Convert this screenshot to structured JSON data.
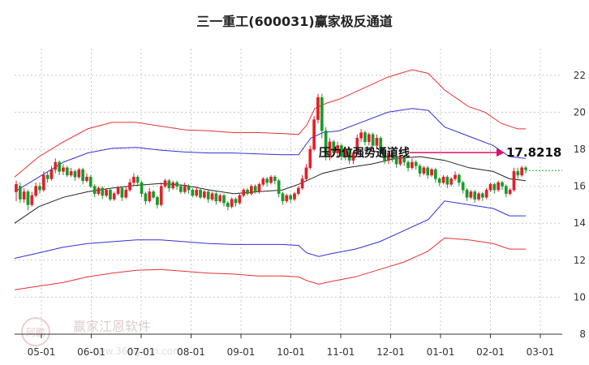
{
  "chart_data": {
    "type": "candlestick",
    "title": "三一重工(600031)赢家极反通道",
    "y_axis": {
      "ylim": [
        8,
        23
      ],
      "ticks": [
        8,
        10,
        12,
        14,
        16,
        18,
        20,
        22
      ],
      "position": "right",
      "grid": "horizontal-dashed"
    },
    "x_axis": {
      "labels": [
        "05-01",
        "06-01",
        "07-01",
        "08-01",
        "09-01",
        "10-01",
        "11-01",
        "12-01",
        "01-01",
        "02-01",
        "03-01"
      ],
      "grid": "vertical-dashed"
    },
    "annotation": {
      "text": "压力位强势通道线",
      "value": "17.8218",
      "y": 17.82
    },
    "current_price_line": 16.85,
    "colors": {
      "up": "#e0202a",
      "down": "#1a9a2a",
      "upper_band": "#e83030",
      "mid_band": "#3030d8",
      "center_line": "#222222",
      "arrow": "#e0106a",
      "price_line": "#2aa02a"
    },
    "series": [
      {
        "name": "",
        "key": "outer_upper",
        "points": [
          [
            0,
            16.5
          ],
          [
            30,
            17.6
          ],
          [
            60,
            18.4
          ],
          [
            90,
            19.1
          ],
          [
            120,
            19.45
          ],
          [
            150,
            19.45
          ],
          [
            180,
            19.25
          ],
          [
            210,
            19.05
          ],
          [
            240,
            19.0
          ],
          [
            270,
            18.9
          ],
          [
            300,
            18.9
          ],
          [
            330,
            18.85
          ],
          [
            350,
            18.8
          ],
          [
            360,
            19.3
          ],
          [
            370,
            20.2
          ],
          [
            385,
            20.5
          ],
          [
            400,
            20.7
          ],
          [
            430,
            21.3
          ],
          [
            460,
            21.9
          ],
          [
            490,
            22.3
          ],
          [
            510,
            22.1
          ],
          [
            530,
            21.2
          ],
          [
            560,
            20.3
          ],
          [
            580,
            20.0
          ],
          [
            600,
            19.4
          ],
          [
            620,
            19.1
          ],
          [
            630,
            19.1
          ]
        ]
      },
      {
        "name": "",
        "key": "inner_upper",
        "points": [
          [
            0,
            15.7
          ],
          [
            30,
            16.5
          ],
          [
            60,
            17.3
          ],
          [
            90,
            17.8
          ],
          [
            120,
            18.05
          ],
          [
            150,
            18.1
          ],
          [
            180,
            17.95
          ],
          [
            210,
            17.85
          ],
          [
            240,
            17.8
          ],
          [
            270,
            17.8
          ],
          [
            300,
            17.75
          ],
          [
            330,
            17.7
          ],
          [
            350,
            17.7
          ],
          [
            365,
            18.6
          ],
          [
            380,
            18.9
          ],
          [
            400,
            19.0
          ],
          [
            430,
            19.5
          ],
          [
            460,
            20.0
          ],
          [
            490,
            20.2
          ],
          [
            510,
            20.1
          ],
          [
            530,
            19.2
          ],
          [
            560,
            18.7
          ],
          [
            590,
            18.2
          ],
          [
            610,
            17.6
          ],
          [
            630,
            17.5
          ]
        ]
      },
      {
        "name": "",
        "key": "center",
        "points": [
          [
            0,
            14.0
          ],
          [
            30,
            14.9
          ],
          [
            60,
            15.4
          ],
          [
            90,
            15.7
          ],
          [
            120,
            15.9
          ],
          [
            150,
            16.05
          ],
          [
            180,
            16.15
          ],
          [
            210,
            16.05
          ],
          [
            240,
            15.8
          ],
          [
            270,
            15.6
          ],
          [
            300,
            15.7
          ],
          [
            330,
            15.8
          ],
          [
            350,
            16.1
          ],
          [
            380,
            16.7
          ],
          [
            410,
            17.0
          ],
          [
            440,
            17.2
          ],
          [
            470,
            17.5
          ],
          [
            500,
            17.6
          ],
          [
            530,
            17.4
          ],
          [
            560,
            17.0
          ],
          [
            590,
            16.8
          ],
          [
            610,
            16.4
          ],
          [
            630,
            16.3
          ]
        ]
      },
      {
        "name": "",
        "key": "inner_lower",
        "points": [
          [
            0,
            12.1
          ],
          [
            30,
            12.4
          ],
          [
            60,
            12.7
          ],
          [
            90,
            12.9
          ],
          [
            120,
            13.0
          ],
          [
            150,
            13.1
          ],
          [
            180,
            13.1
          ],
          [
            210,
            13.0
          ],
          [
            240,
            12.9
          ],
          [
            270,
            12.85
          ],
          [
            300,
            12.85
          ],
          [
            330,
            12.85
          ],
          [
            350,
            12.8
          ],
          [
            360,
            12.4
          ],
          [
            375,
            12.2
          ],
          [
            390,
            12.35
          ],
          [
            420,
            12.6
          ],
          [
            450,
            13.0
          ],
          [
            480,
            13.6
          ],
          [
            510,
            14.2
          ],
          [
            530,
            15.2
          ],
          [
            560,
            15.0
          ],
          [
            590,
            14.8
          ],
          [
            610,
            14.4
          ],
          [
            630,
            14.4
          ]
        ]
      },
      {
        "name": "",
        "key": "outer_lower",
        "points": [
          [
            0,
            10.4
          ],
          [
            30,
            10.6
          ],
          [
            60,
            10.8
          ],
          [
            90,
            11.1
          ],
          [
            120,
            11.3
          ],
          [
            150,
            11.45
          ],
          [
            180,
            11.5
          ],
          [
            210,
            11.4
          ],
          [
            240,
            11.3
          ],
          [
            270,
            11.25
          ],
          [
            300,
            11.15
          ],
          [
            330,
            11.15
          ],
          [
            350,
            11.1
          ],
          [
            360,
            10.9
          ],
          [
            375,
            10.7
          ],
          [
            390,
            10.85
          ],
          [
            420,
            11.1
          ],
          [
            450,
            11.5
          ],
          [
            480,
            11.9
          ],
          [
            510,
            12.5
          ],
          [
            530,
            13.2
          ],
          [
            560,
            13.1
          ],
          [
            590,
            12.9
          ],
          [
            610,
            12.6
          ],
          [
            630,
            12.6
          ]
        ]
      }
    ],
    "candles": [
      [
        15.7,
        16.1,
        15.2,
        16.3
      ],
      [
        16.0,
        15.3,
        15.1,
        16.2
      ],
      [
        15.3,
        15.7,
        15.1,
        15.9
      ],
      [
        15.7,
        15.0,
        14.7,
        15.8
      ],
      [
        15.0,
        15.5,
        14.9,
        15.7
      ],
      [
        15.5,
        16.0,
        15.4,
        16.2
      ],
      [
        16.0,
        15.8,
        15.6,
        16.2
      ],
      [
        15.8,
        16.6,
        15.7,
        16.8
      ],
      [
        16.6,
        16.4,
        16.2,
        16.8
      ],
      [
        16.4,
        16.9,
        16.3,
        17.1
      ],
      [
        16.9,
        17.3,
        16.7,
        17.5
      ],
      [
        17.3,
        16.8,
        16.6,
        17.4
      ],
      [
        16.8,
        17.0,
        16.6,
        17.2
      ],
      [
        17.0,
        16.6,
        16.5,
        17.1
      ],
      [
        16.6,
        16.8,
        16.5,
        17.0
      ],
      [
        16.8,
        16.5,
        16.3,
        16.9
      ],
      [
        16.5,
        16.9,
        16.4,
        17.0
      ],
      [
        16.9,
        16.3,
        16.1,
        17.0
      ],
      [
        16.3,
        16.5,
        16.2,
        16.7
      ],
      [
        16.5,
        16.0,
        15.9,
        16.6
      ],
      [
        16.0,
        15.6,
        15.4,
        16.1
      ],
      [
        15.6,
        15.9,
        15.5,
        16.0
      ],
      [
        15.9,
        15.5,
        15.3,
        16.0
      ],
      [
        15.5,
        15.8,
        15.4,
        15.9
      ],
      [
        15.8,
        15.3,
        15.2,
        15.9
      ],
      [
        15.3,
        15.6,
        15.2,
        15.7
      ],
      [
        15.6,
        15.9,
        15.5,
        16.0
      ],
      [
        15.9,
        15.4,
        15.2,
        16.0
      ],
      [
        15.4,
        15.8,
        15.3,
        16.0
      ],
      [
        15.8,
        16.2,
        15.7,
        16.4
      ],
      [
        16.2,
        16.5,
        16.0,
        16.7
      ],
      [
        16.5,
        16.2,
        16.0,
        16.6
      ],
      [
        16.2,
        15.6,
        15.4,
        16.3
      ],
      [
        15.6,
        15.2,
        15.0,
        15.7
      ],
      [
        15.2,
        15.7,
        15.1,
        15.9
      ],
      [
        15.7,
        15.4,
        15.3,
        15.8
      ],
      [
        15.4,
        15.0,
        14.8,
        15.5
      ],
      [
        15.0,
        16.0,
        14.9,
        16.2
      ],
      [
        16.0,
        16.3,
        15.9,
        16.4
      ],
      [
        16.3,
        15.9,
        15.7,
        16.4
      ],
      [
        15.9,
        16.2,
        15.8,
        16.3
      ],
      [
        16.2,
        16.0,
        15.8,
        16.3
      ],
      [
        16.0,
        15.7,
        15.6,
        16.1
      ],
      [
        15.7,
        16.0,
        15.6,
        16.2
      ],
      [
        16.0,
        15.8,
        15.6,
        16.1
      ],
      [
        15.8,
        15.5,
        15.4,
        15.9
      ],
      [
        15.5,
        15.8,
        15.4,
        16.0
      ],
      [
        15.8,
        15.4,
        15.3,
        15.9
      ],
      [
        15.4,
        15.7,
        15.3,
        15.8
      ],
      [
        15.7,
        15.3,
        15.1,
        15.8
      ],
      [
        15.3,
        15.6,
        15.2,
        15.7
      ],
      [
        15.6,
        15.2,
        15.0,
        15.7
      ],
      [
        15.2,
        15.5,
        15.1,
        15.6
      ],
      [
        15.5,
        15.1,
        14.9,
        15.6
      ],
      [
        15.1,
        14.9,
        14.7,
        15.2
      ],
      [
        14.9,
        15.3,
        14.8,
        15.4
      ],
      [
        15.3,
        15.1,
        14.9,
        15.4
      ],
      [
        15.1,
        15.5,
        15.0,
        15.6
      ],
      [
        15.5,
        15.8,
        15.4,
        15.9
      ],
      [
        15.8,
        15.6,
        15.5,
        15.9
      ],
      [
        15.6,
        16.0,
        15.5,
        16.1
      ],
      [
        16.0,
        15.7,
        15.6,
        16.1
      ],
      [
        15.7,
        16.1,
        15.6,
        16.2
      ],
      [
        16.1,
        16.4,
        16.0,
        16.5
      ],
      [
        16.4,
        16.2,
        16.0,
        16.5
      ],
      [
        16.2,
        16.5,
        16.1,
        16.6
      ],
      [
        16.5,
        16.3,
        16.1,
        16.6
      ],
      [
        16.3,
        15.6,
        15.4,
        16.4
      ],
      [
        15.6,
        15.2,
        15.0,
        15.7
      ],
      [
        15.2,
        15.5,
        15.1,
        15.6
      ],
      [
        15.5,
        15.3,
        15.1,
        15.6
      ],
      [
        15.3,
        15.6,
        15.2,
        15.7
      ],
      [
        15.6,
        15.9,
        15.5,
        16.0
      ],
      [
        15.9,
        16.4,
        15.8,
        16.6
      ],
      [
        16.4,
        17.0,
        16.3,
        17.2
      ],
      [
        17.0,
        18.0,
        16.9,
        18.2
      ],
      [
        18.0,
        19.6,
        17.9,
        19.8
      ],
      [
        19.6,
        20.8,
        19.4,
        21.0
      ],
      [
        20.8,
        19.0,
        18.6,
        21.0
      ],
      [
        19.0,
        17.6,
        17.4,
        19.2
      ],
      [
        17.6,
        18.4,
        17.4,
        18.6
      ],
      [
        18.4,
        17.8,
        17.6,
        18.5
      ],
      [
        17.8,
        18.2,
        17.6,
        18.4
      ],
      [
        18.2,
        17.6,
        17.4,
        18.3
      ],
      [
        17.6,
        18.0,
        17.4,
        18.1
      ],
      [
        18.0,
        17.4,
        17.2,
        18.1
      ],
      [
        17.4,
        17.8,
        17.2,
        17.9
      ],
      [
        17.8,
        18.6,
        17.7,
        18.8
      ],
      [
        18.6,
        18.9,
        18.4,
        19.1
      ],
      [
        18.9,
        18.4,
        18.2,
        19.0
      ],
      [
        18.4,
        18.8,
        18.2,
        18.9
      ],
      [
        18.8,
        18.2,
        18.0,
        18.9
      ],
      [
        18.2,
        18.6,
        18.0,
        18.8
      ],
      [
        18.6,
        17.8,
        17.6,
        18.7
      ],
      [
        17.8,
        17.4,
        17.2,
        17.9
      ],
      [
        17.4,
        17.8,
        17.2,
        17.9
      ],
      [
        17.8,
        17.5,
        17.3,
        17.9
      ],
      [
        17.5,
        17.2,
        17.0,
        17.6
      ],
      [
        17.2,
        17.6,
        17.1,
        17.7
      ],
      [
        17.6,
        17.3,
        17.1,
        17.7
      ],
      [
        17.3,
        17.0,
        16.8,
        17.4
      ],
      [
        17.0,
        17.3,
        16.9,
        17.5
      ],
      [
        17.3,
        17.1,
        16.9,
        17.4
      ],
      [
        17.1,
        16.7,
        16.5,
        17.2
      ],
      [
        16.7,
        17.0,
        16.6,
        17.1
      ],
      [
        17.0,
        16.6,
        16.4,
        17.1
      ],
      [
        16.6,
        16.9,
        16.5,
        17.0
      ],
      [
        16.9,
        16.4,
        16.2,
        17.0
      ],
      [
        16.4,
        16.2,
        16.0,
        16.5
      ],
      [
        16.2,
        16.5,
        16.1,
        16.6
      ],
      [
        16.5,
        16.1,
        15.9,
        16.6
      ],
      [
        16.1,
        16.4,
        16.0,
        16.5
      ],
      [
        16.4,
        16.6,
        16.3,
        16.8
      ],
      [
        16.6,
        16.2,
        16.0,
        16.7
      ],
      [
        16.2,
        15.8,
        15.6,
        16.3
      ],
      [
        15.8,
        15.4,
        15.2,
        15.9
      ],
      [
        15.4,
        15.7,
        15.3,
        15.8
      ],
      [
        15.7,
        15.3,
        15.1,
        15.8
      ],
      [
        15.3,
        15.6,
        15.2,
        15.7
      ],
      [
        15.6,
        15.4,
        15.2,
        15.7
      ],
      [
        15.4,
        15.8,
        15.3,
        15.9
      ],
      [
        15.8,
        16.1,
        15.7,
        16.2
      ],
      [
        16.1,
        15.8,
        15.6,
        16.2
      ],
      [
        15.8,
        16.2,
        15.7,
        16.3
      ],
      [
        16.2,
        16.0,
        15.8,
        16.3
      ],
      [
        16.0,
        15.6,
        15.4,
        16.1
      ],
      [
        15.6,
        15.8,
        15.5,
        15.9
      ],
      [
        15.8,
        16.8,
        15.7,
        17.0
      ],
      [
        16.8,
        16.6,
        16.4,
        17.0
      ],
      [
        16.6,
        17.0,
        16.5,
        17.1
      ],
      [
        17.0,
        16.9,
        16.7,
        17.1
      ]
    ]
  },
  "watermark": {
    "brand": "赢家江恩软件",
    "site": "www.360gann.com",
    "seal": "阿鹏"
  }
}
